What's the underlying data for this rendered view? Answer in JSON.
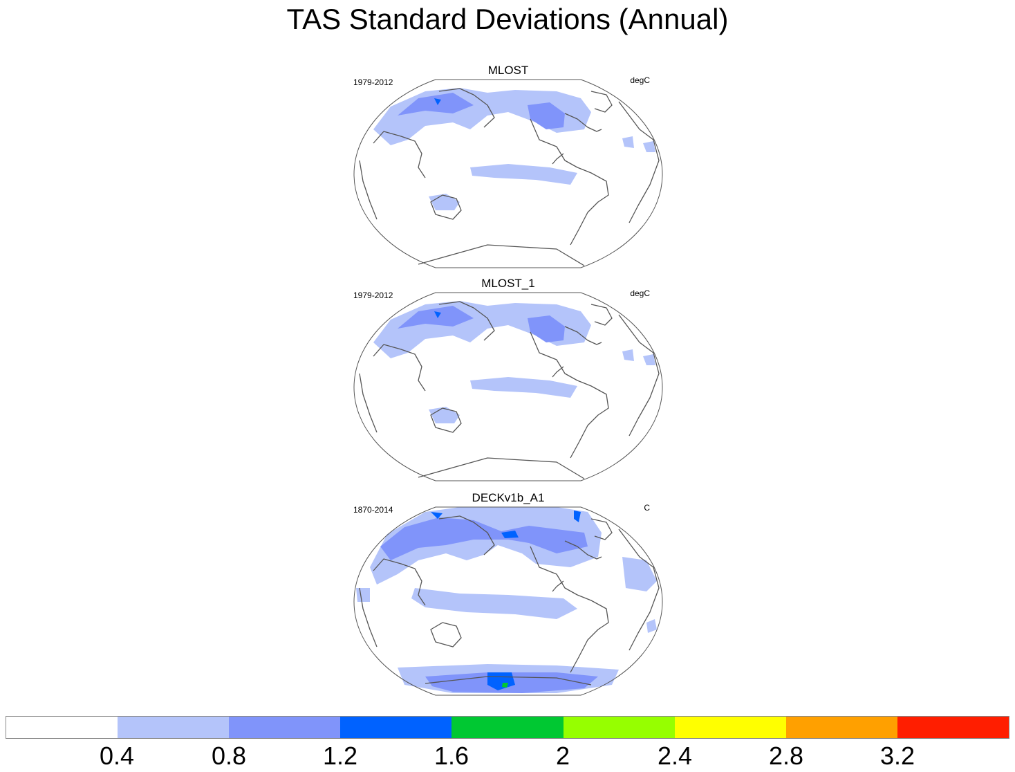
{
  "title": "TAS Standard Deviations (Annual)",
  "panels": [
    {
      "name": "MLOST",
      "period": "1979-2012",
      "units": "degC"
    },
    {
      "name": "MLOST_1",
      "period": "1979-2012",
      "units": "degC"
    },
    {
      "name": "DECKv1b_A1",
      "period": "1870-2014",
      "units": "C"
    }
  ],
  "colorbar": {
    "colors": [
      "#ffffff",
      "#b4c4fa",
      "#8094fa",
      "#0062ff",
      "#00c832",
      "#96ff00",
      "#ffff00",
      "#ffa000",
      "#ff1e00"
    ],
    "labels": [
      "0.4",
      "0.8",
      "1.2",
      "1.6",
      "2",
      "2.4",
      "2.8",
      "3.2"
    ]
  }
}
